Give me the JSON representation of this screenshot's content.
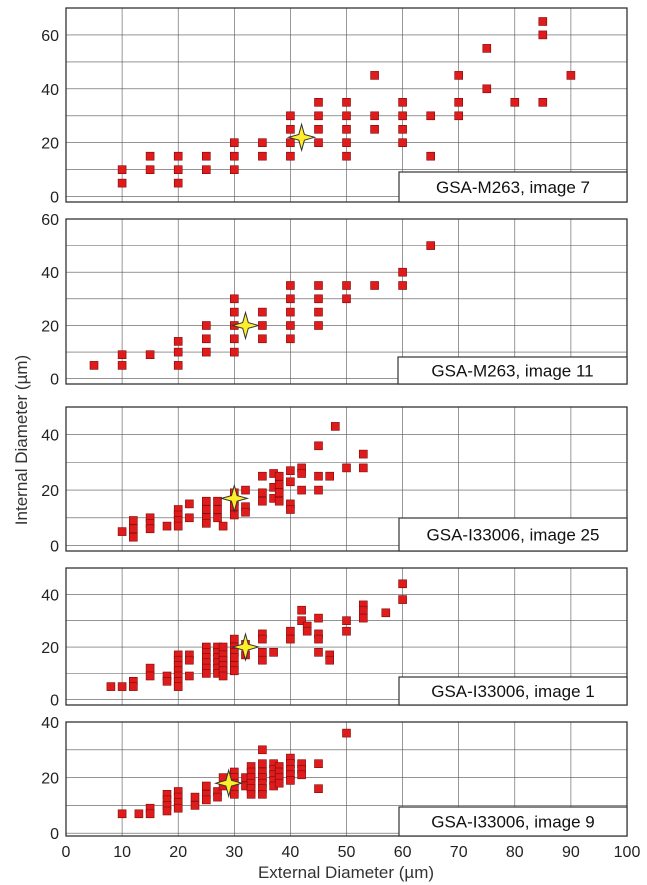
{
  "figure": {
    "ylabel": "Internal Diameter (µm)",
    "xlabel": "External Diameter (µm)",
    "xticks": [
      0,
      10,
      20,
      30,
      40,
      50,
      60,
      70,
      80,
      90,
      100
    ]
  },
  "colors": {
    "marker": "#e01b1b",
    "marker_edge": "#7a0a0a",
    "star": "#ffee2a",
    "star_edge": "#333333",
    "grid": "#555555"
  },
  "chart_data": [
    {
      "type": "scatter",
      "label": "GSA-M263, image 7",
      "xlim": [
        0,
        100
      ],
      "ylim": [
        -2,
        70
      ],
      "yticks": [
        0,
        20,
        40,
        60
      ],
      "grid": true,
      "points": [
        [
          10,
          10
        ],
        [
          10,
          5
        ],
        [
          15,
          15
        ],
        [
          15,
          10
        ],
        [
          20,
          15
        ],
        [
          20,
          10
        ],
        [
          20,
          5
        ],
        [
          25,
          15
        ],
        [
          25,
          10
        ],
        [
          30,
          20
        ],
        [
          30,
          15
        ],
        [
          30,
          10
        ],
        [
          35,
          20
        ],
        [
          35,
          15
        ],
        [
          40,
          30
        ],
        [
          40,
          25
        ],
        [
          40,
          20
        ],
        [
          40,
          15
        ],
        [
          45,
          35
        ],
        [
          45,
          30
        ],
        [
          45,
          25
        ],
        [
          45,
          20
        ],
        [
          50,
          35
        ],
        [
          50,
          30
        ],
        [
          50,
          25
        ],
        [
          50,
          20
        ],
        [
          50,
          15
        ],
        [
          55,
          45
        ],
        [
          55,
          30
        ],
        [
          55,
          25
        ],
        [
          60,
          35
        ],
        [
          60,
          30
        ],
        [
          60,
          25
        ],
        [
          60,
          20
        ],
        [
          65,
          30
        ],
        [
          65,
          15
        ],
        [
          70,
          45
        ],
        [
          70,
          35
        ],
        [
          70,
          30
        ],
        [
          75,
          55
        ],
        [
          75,
          40
        ],
        [
          80,
          35
        ],
        [
          85,
          65
        ],
        [
          85,
          60
        ],
        [
          85,
          35
        ],
        [
          90,
          45
        ]
      ],
      "star": [
        42,
        22
      ]
    },
    {
      "type": "scatter",
      "label": "GSA-M263, image 11",
      "xlim": [
        0,
        100
      ],
      "ylim": [
        -2,
        60
      ],
      "yticks": [
        0,
        20,
        40,
        60
      ],
      "grid": true,
      "points": [
        [
          5,
          5
        ],
        [
          10,
          9
        ],
        [
          10,
          5
        ],
        [
          15,
          9
        ],
        [
          20,
          14
        ],
        [
          20,
          10
        ],
        [
          20,
          5
        ],
        [
          25,
          20
        ],
        [
          25,
          15
        ],
        [
          25,
          10
        ],
        [
          30,
          30
        ],
        [
          30,
          25
        ],
        [
          30,
          20
        ],
        [
          30,
          15
        ],
        [
          30,
          10
        ],
        [
          35,
          25
        ],
        [
          35,
          20
        ],
        [
          35,
          15
        ],
        [
          40,
          35
        ],
        [
          40,
          30
        ],
        [
          40,
          25
        ],
        [
          40,
          20
        ],
        [
          40,
          15
        ],
        [
          45,
          35
        ],
        [
          45,
          30
        ],
        [
          45,
          25
        ],
        [
          45,
          20
        ],
        [
          50,
          35
        ],
        [
          50,
          30
        ],
        [
          55,
          35
        ],
        [
          60,
          40
        ],
        [
          60,
          35
        ],
        [
          65,
          50
        ]
      ],
      "star": [
        32,
        20
      ]
    },
    {
      "type": "scatter",
      "label": "GSA-I33006, image 25",
      "xlim": [
        0,
        100
      ],
      "ylim": [
        -2,
        50
      ],
      "yticks": [
        0,
        20,
        40
      ],
      "grid": true,
      "points": [
        [
          10,
          5
        ],
        [
          12,
          9
        ],
        [
          12,
          6
        ],
        [
          12,
          3
        ],
        [
          15,
          10
        ],
        [
          15,
          8
        ],
        [
          15,
          6
        ],
        [
          18,
          7
        ],
        [
          20,
          13
        ],
        [
          20,
          11
        ],
        [
          20,
          9
        ],
        [
          20,
          7
        ],
        [
          22,
          15
        ],
        [
          22,
          10
        ],
        [
          25,
          16
        ],
        [
          25,
          13
        ],
        [
          25,
          10
        ],
        [
          25,
          8
        ],
        [
          27,
          16
        ],
        [
          27,
          13
        ],
        [
          27,
          10
        ],
        [
          28,
          7
        ],
        [
          30,
          19
        ],
        [
          30,
          16
        ],
        [
          30,
          14
        ],
        [
          30,
          11
        ],
        [
          32,
          20
        ],
        [
          32,
          14
        ],
        [
          32,
          12
        ],
        [
          35,
          25
        ],
        [
          35,
          19
        ],
        [
          35,
          16
        ],
        [
          37,
          26
        ],
        [
          37,
          21
        ],
        [
          37,
          17
        ],
        [
          38,
          25
        ],
        [
          38,
          22
        ],
        [
          38,
          19
        ],
        [
          38,
          16
        ],
        [
          40,
          27
        ],
        [
          40,
          23
        ],
        [
          40,
          15
        ],
        [
          40,
          13
        ],
        [
          42,
          28
        ],
        [
          42,
          26
        ],
        [
          42,
          20
        ],
        [
          45,
          36
        ],
        [
          45,
          25
        ],
        [
          45,
          20
        ],
        [
          47,
          25
        ],
        [
          48,
          43
        ],
        [
          50,
          28
        ],
        [
          53,
          33
        ],
        [
          53,
          28
        ]
      ],
      "star": [
        30,
        17
      ]
    },
    {
      "type": "scatter",
      "label": "GSA-I33006, image 1",
      "xlim": [
        0,
        100
      ],
      "ylim": [
        -2,
        50
      ],
      "yticks": [
        0,
        20,
        40
      ],
      "grid": true,
      "points": [
        [
          8,
          5
        ],
        [
          10,
          5
        ],
        [
          12,
          7
        ],
        [
          12,
          5
        ],
        [
          15,
          12
        ],
        [
          15,
          9
        ],
        [
          18,
          9
        ],
        [
          18,
          7
        ],
        [
          20,
          17
        ],
        [
          20,
          15
        ],
        [
          20,
          13
        ],
        [
          20,
          11
        ],
        [
          20,
          9
        ],
        [
          20,
          7
        ],
        [
          20,
          5
        ],
        [
          22,
          17
        ],
        [
          22,
          15
        ],
        [
          22,
          9
        ],
        [
          25,
          20
        ],
        [
          25,
          18
        ],
        [
          25,
          16
        ],
        [
          25,
          14
        ],
        [
          25,
          12
        ],
        [
          25,
          10
        ],
        [
          27,
          20
        ],
        [
          27,
          18
        ],
        [
          27,
          16
        ],
        [
          27,
          14
        ],
        [
          27,
          12
        ],
        [
          27,
          10
        ],
        [
          28,
          20
        ],
        [
          28,
          17
        ],
        [
          28,
          15
        ],
        [
          28,
          13
        ],
        [
          28,
          11
        ],
        [
          28,
          9
        ],
        [
          30,
          23
        ],
        [
          30,
          20
        ],
        [
          30,
          18
        ],
        [
          30,
          16
        ],
        [
          30,
          13
        ],
        [
          30,
          11
        ],
        [
          32,
          21
        ],
        [
          32,
          17
        ],
        [
          35,
          25
        ],
        [
          35,
          23
        ],
        [
          35,
          18
        ],
        [
          35,
          15
        ],
        [
          37,
          18
        ],
        [
          40,
          26
        ],
        [
          40,
          23
        ],
        [
          42,
          34
        ],
        [
          42,
          30
        ],
        [
          43,
          28
        ],
        [
          43,
          26
        ],
        [
          45,
          31
        ],
        [
          45,
          25
        ],
        [
          45,
          23
        ],
        [
          45,
          18
        ],
        [
          47,
          17
        ],
        [
          47,
          15
        ],
        [
          50,
          30
        ],
        [
          50,
          26
        ],
        [
          53,
          36
        ],
        [
          53,
          34
        ],
        [
          53,
          31
        ],
        [
          57,
          33
        ],
        [
          60,
          44
        ],
        [
          60,
          38
        ]
      ],
      "star": [
        32,
        20
      ]
    },
    {
      "type": "scatter",
      "label": "GSA-I33006, image 9",
      "xlim": [
        0,
        100
      ],
      "ylim": [
        -1,
        40
      ],
      "yticks": [
        0,
        20,
        40
      ],
      "grid": true,
      "points": [
        [
          10,
          7
        ],
        [
          13,
          7
        ],
        [
          15,
          9
        ],
        [
          15,
          7
        ],
        [
          18,
          14
        ],
        [
          18,
          12
        ],
        [
          18,
          10
        ],
        [
          18,
          8
        ],
        [
          20,
          15
        ],
        [
          20,
          13
        ],
        [
          20,
          11
        ],
        [
          20,
          9
        ],
        [
          23,
          13
        ],
        [
          23,
          10
        ],
        [
          25,
          17
        ],
        [
          25,
          14
        ],
        [
          25,
          12
        ],
        [
          27,
          15
        ],
        [
          27,
          13
        ],
        [
          28,
          20
        ],
        [
          28,
          17
        ],
        [
          30,
          22
        ],
        [
          30,
          20
        ],
        [
          30,
          18
        ],
        [
          30,
          16
        ],
        [
          30,
          14
        ],
        [
          32,
          20
        ],
        [
          32,
          17
        ],
        [
          33,
          24
        ],
        [
          33,
          22
        ],
        [
          33,
          20
        ],
        [
          33,
          18
        ],
        [
          33,
          16
        ],
        [
          33,
          14
        ],
        [
          35,
          30
        ],
        [
          35,
          25
        ],
        [
          35,
          22
        ],
        [
          35,
          20
        ],
        [
          35,
          18
        ],
        [
          35,
          16
        ],
        [
          35,
          14
        ],
        [
          37,
          25
        ],
        [
          37,
          23
        ],
        [
          37,
          21
        ],
        [
          37,
          19
        ],
        [
          37,
          17
        ],
        [
          38,
          24
        ],
        [
          38,
          22
        ],
        [
          38,
          20
        ],
        [
          38,
          18
        ],
        [
          40,
          27
        ],
        [
          40,
          25
        ],
        [
          40,
          23
        ],
        [
          40,
          21
        ],
        [
          40,
          19
        ],
        [
          42,
          25
        ],
        [
          42,
          23
        ],
        [
          42,
          21
        ],
        [
          45,
          25
        ],
        [
          45,
          16
        ],
        [
          50,
          36
        ]
      ],
      "star": [
        29,
        18
      ]
    }
  ]
}
